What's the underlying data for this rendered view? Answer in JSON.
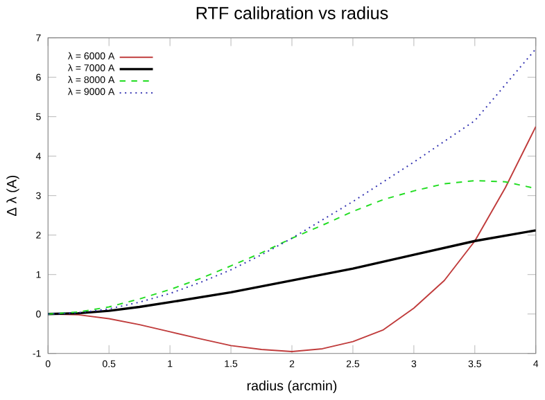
{
  "chart_data": {
    "type": "line",
    "title": "RTF calibration vs radius",
    "xlabel": "radius (arcmin)",
    "ylabel": "Δ λ (A)",
    "xlim": [
      0,
      4
    ],
    "xticks": [
      0,
      0.5,
      1,
      1.5,
      2,
      2.5,
      3,
      3.5,
      4
    ],
    "ylim": [
      -1,
      7
    ],
    "yticks": [
      -1,
      0,
      1,
      2,
      3,
      4,
      5,
      6,
      7
    ],
    "legend": "top left",
    "grid": false,
    "marker": "none",
    "series": [
      {
        "name": "λ = 6000 A",
        "color": "#c03c3c",
        "line_style": "solid",
        "x": [
          0,
          0.25,
          0.5,
          0.75,
          1,
          1.25,
          1.5,
          1.75,
          2,
          2.25,
          2.5,
          2.75,
          3,
          3.25,
          3.5,
          3.75,
          4
        ],
        "values": [
          0,
          -0.02,
          -0.12,
          -0.27,
          -0.45,
          -0.63,
          -0.8,
          -0.9,
          -0.95,
          -0.88,
          -0.7,
          -0.4,
          0.15,
          0.85,
          1.85,
          3.2,
          4.75
        ]
      },
      {
        "name": "λ = 7000 A",
        "color": "#000000",
        "line_style": "solid",
        "x": [
          0,
          0.25,
          0.5,
          0.75,
          1,
          1.5,
          2,
          2.5,
          3,
          3.5,
          4
        ],
        "values": [
          0,
          0.02,
          0.08,
          0.18,
          0.3,
          0.55,
          0.85,
          1.15,
          1.5,
          1.85,
          2.12
        ]
      },
      {
        "name": "λ = 8000 A",
        "color": "#22dd22",
        "line_style": "dashed",
        "x": [
          0,
          0.25,
          0.5,
          0.75,
          1,
          1.25,
          1.5,
          1.75,
          2,
          2.25,
          2.5,
          2.75,
          3,
          3.25,
          3.5,
          3.75,
          4
        ],
        "values": [
          0,
          0.05,
          0.18,
          0.38,
          0.62,
          0.9,
          1.22,
          1.55,
          1.92,
          2.25,
          2.6,
          2.9,
          3.12,
          3.3,
          3.38,
          3.35,
          3.18
        ]
      },
      {
        "name": "λ = 9000 A",
        "color": "#3030b0",
        "line_style": "dotted",
        "x": [
          0,
          0.25,
          0.5,
          0.75,
          1,
          1.25,
          1.5,
          1.75,
          2,
          2.5,
          3,
          3.5,
          4
        ],
        "values": [
          0,
          0.03,
          0.13,
          0.3,
          0.52,
          0.8,
          1.12,
          1.5,
          1.92,
          2.85,
          3.85,
          4.9,
          6.72
        ]
      }
    ]
  }
}
